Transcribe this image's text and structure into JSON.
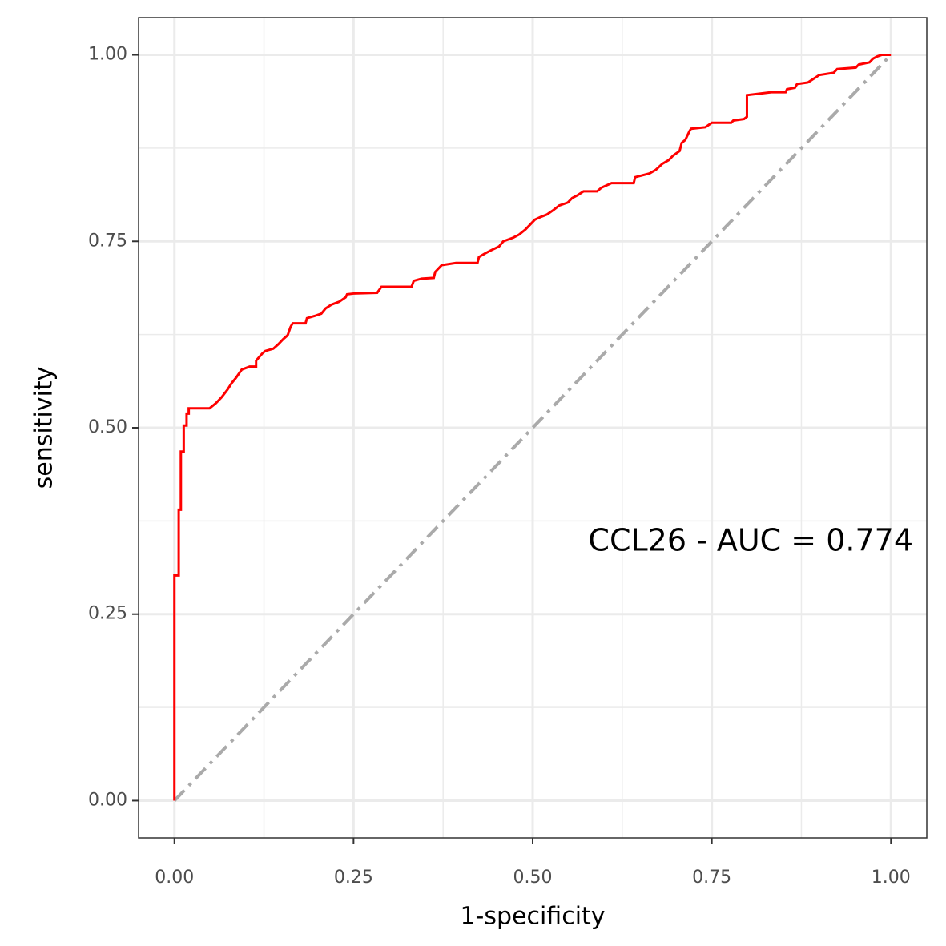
{
  "chart_data": {
    "type": "line",
    "x_label": "1-specificity",
    "y_label": "sensitivity",
    "annotation": "CCL26 - AUC =  0.774",
    "xlim": [
      -0.05,
      1.05
    ],
    "ylim": [
      -0.05,
      1.05
    ],
    "xticks": [
      {
        "value": 0,
        "label": "0.00"
      },
      {
        "value": 0.25,
        "label": "0.25"
      },
      {
        "value": 0.5,
        "label": "0.50"
      },
      {
        "value": 0.75,
        "label": "0.75"
      },
      {
        "value": 1,
        "label": "1.00"
      }
    ],
    "yticks": [
      {
        "value": 0,
        "label": "0.00"
      },
      {
        "value": 0.25,
        "label": "0.25"
      },
      {
        "value": 0.5,
        "label": "0.50"
      },
      {
        "value": 0.75,
        "label": "0.75"
      },
      {
        "value": 1,
        "label": "1.00"
      }
    ],
    "minor_xticks": [
      0.125,
      0.375,
      0.625,
      0.875
    ],
    "minor_yticks": [
      0.125,
      0.375,
      0.625,
      0.875
    ],
    "grid": true,
    "reference_line": {
      "x": [
        0,
        1
      ],
      "y": [
        0,
        1
      ],
      "color": "#aaaaaa"
    },
    "roc": {
      "color": "#ff0000",
      "x": [
        0,
        0,
        0.006,
        0.006,
        0.009,
        0.009,
        0.013,
        0.013,
        0.017,
        0.017,
        0.02,
        0.02,
        0.049,
        0.058,
        0.066,
        0.074,
        0.08,
        0.086,
        0.094,
        0.105,
        0.114,
        0.114,
        0.123,
        0.127,
        0.138,
        0.145,
        0.152,
        0.158,
        0.162,
        0.165,
        0.183,
        0.185,
        0.196,
        0.205,
        0.211,
        0.219,
        0.23,
        0.239,
        0.241,
        0.25,
        0.283,
        0.289,
        0.331,
        0.334,
        0.345,
        0.362,
        0.364,
        0.373,
        0.393,
        0.423,
        0.425,
        0.434,
        0.442,
        0.453,
        0.459,
        0.473,
        0.481,
        0.49,
        0.496,
        0.503,
        0.512,
        0.52,
        0.529,
        0.537,
        0.549,
        0.555,
        0.563,
        0.571,
        0.59,
        0.596,
        0.61,
        0.641,
        0.643,
        0.663,
        0.672,
        0.681,
        0.69,
        0.696,
        0.705,
        0.708,
        0.713,
        0.719,
        0.721,
        0.741,
        0.75,
        0.777,
        0.78,
        0.795,
        0.799,
        0.799,
        0.833,
        0.853,
        0.855,
        0.866,
        0.869,
        0.884,
        0.892,
        0.9,
        0.92,
        0.925,
        0.951,
        0.955,
        0.97,
        0.975,
        0.981,
        0.987,
        1.0
      ],
      "y": [
        0,
        0.302,
        0.302,
        0.39,
        0.39,
        0.468,
        0.468,
        0.503,
        0.503,
        0.519,
        0.519,
        0.526,
        0.526,
        0.533,
        0.541,
        0.551,
        0.56,
        0.567,
        0.578,
        0.582,
        0.582,
        0.59,
        0.6,
        0.603,
        0.606,
        0.612,
        0.619,
        0.624,
        0.635,
        0.64,
        0.64,
        0.647,
        0.65,
        0.653,
        0.66,
        0.665,
        0.669,
        0.675,
        0.679,
        0.68,
        0.681,
        0.689,
        0.689,
        0.697,
        0.7,
        0.701,
        0.709,
        0.718,
        0.721,
        0.721,
        0.729,
        0.734,
        0.738,
        0.743,
        0.75,
        0.755,
        0.759,
        0.766,
        0.772,
        0.779,
        0.783,
        0.786,
        0.792,
        0.798,
        0.802,
        0.808,
        0.812,
        0.817,
        0.817,
        0.822,
        0.828,
        0.828,
        0.836,
        0.841,
        0.846,
        0.854,
        0.859,
        0.865,
        0.871,
        0.882,
        0.886,
        0.898,
        0.901,
        0.903,
        0.909,
        0.909,
        0.912,
        0.914,
        0.917,
        0.946,
        0.95,
        0.95,
        0.954,
        0.956,
        0.961,
        0.963,
        0.968,
        0.973,
        0.976,
        0.981,
        0.983,
        0.987,
        0.99,
        0.995,
        0.998,
        1.0,
        1.0
      ]
    }
  }
}
